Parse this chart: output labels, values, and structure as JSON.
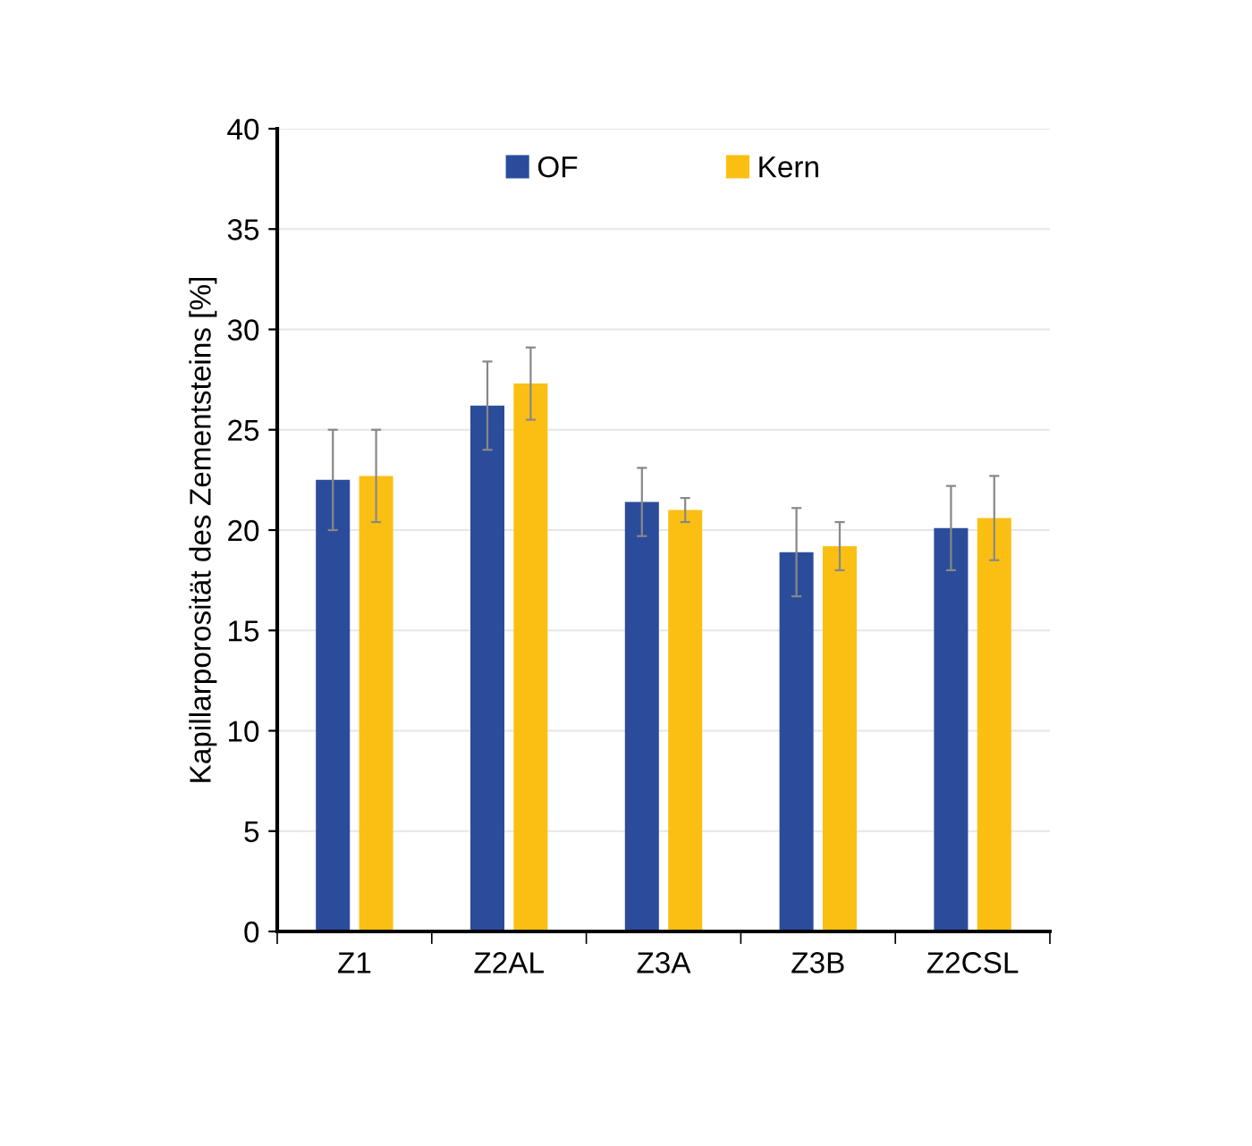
{
  "chart_data": {
    "type": "bar",
    "ylabel": "Kapillarporosität des Zementsteins [%]",
    "categories": [
      "Z1",
      "Z2AL",
      "Z3A",
      "Z3B",
      "Z2CSL"
    ],
    "series": [
      {
        "name": "OF",
        "color": "#2b4c9b",
        "values": [
          22.5,
          26.2,
          21.4,
          18.9,
          20.1
        ],
        "errors": [
          2.5,
          2.2,
          1.7,
          2.2,
          2.1
        ]
      },
      {
        "name": "Kern",
        "color": "#fbbf14",
        "values": [
          22.7,
          27.3,
          21.0,
          19.2,
          20.6
        ],
        "errors": [
          2.3,
          1.8,
          0.6,
          1.2,
          2.1
        ]
      }
    ],
    "ylim": [
      0,
      40
    ],
    "yticks": [
      0,
      5,
      10,
      15,
      20,
      25,
      30,
      35,
      40
    ],
    "grid": "y",
    "legend": "top"
  }
}
